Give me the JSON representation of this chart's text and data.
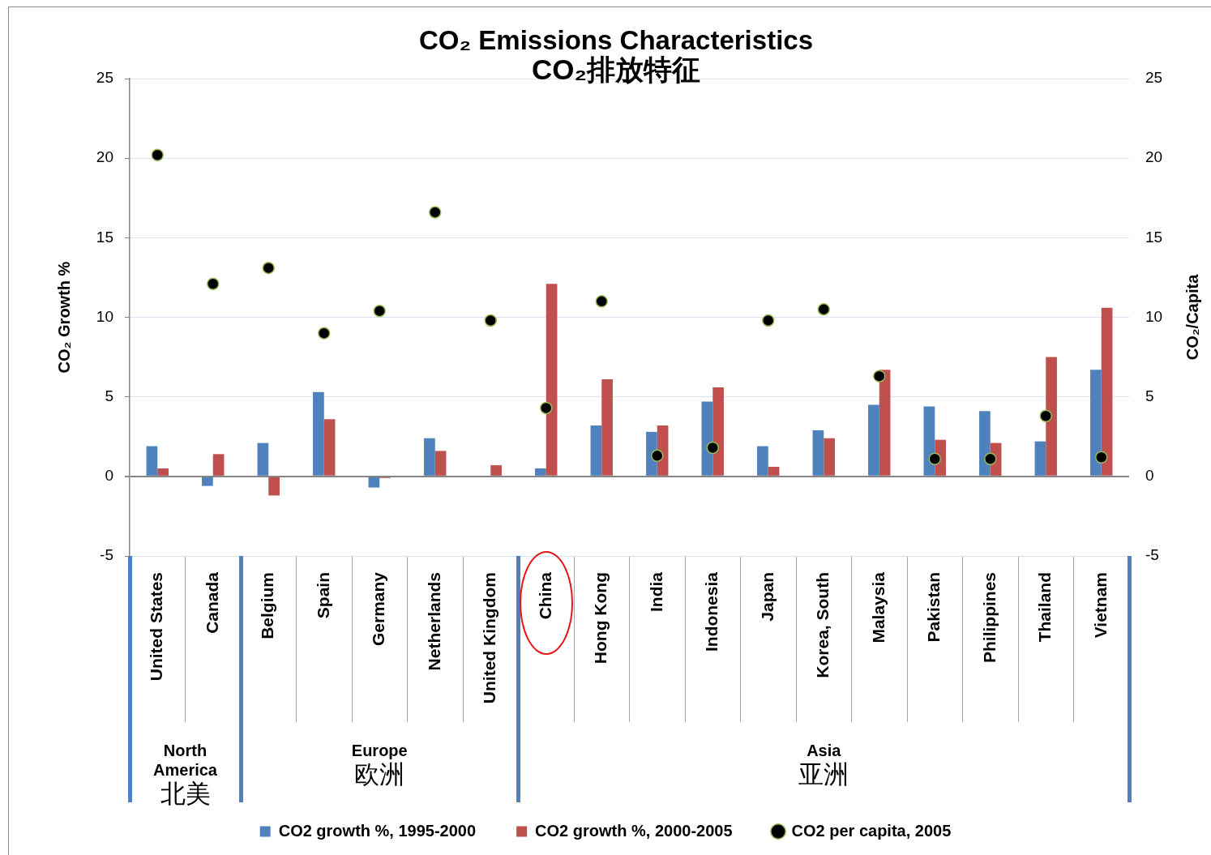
{
  "chart_data": {
    "type": "bar",
    "title": "CO₂ Emissions Characteristics",
    "subtitle": "CO₂排放特征",
    "ylabel": "CO₂ Growth %",
    "y2label": "CO₂/Capita",
    "categories": [
      "United States",
      "Canada",
      "Belgium",
      "Spain",
      "Germany",
      "Netherlands",
      "United Kingdom",
      "China",
      "Hong Kong",
      "India",
      "Indonesia",
      "Japan",
      "Korea, South",
      "Malaysia",
      "Pakistan",
      "Philippines",
      "Thailand",
      "Vietnam"
    ],
    "series": [
      {
        "name": "CO2 growth %, 1995-2000",
        "color": "#4f81bd",
        "values": [
          1.9,
          -0.6,
          2.1,
          5.3,
          -0.7,
          2.4,
          null,
          0.5,
          3.2,
          2.8,
          4.7,
          1.9,
          2.9,
          4.5,
          4.4,
          4.1,
          2.2,
          6.7
        ]
      },
      {
        "name": "CO2 growth %, 2000-2005",
        "color": "#c0504d",
        "values": [
          0.5,
          1.4,
          -1.2,
          3.6,
          -0.1,
          1.6,
          0.7,
          12.1,
          6.1,
          3.2,
          5.6,
          0.6,
          2.4,
          6.7,
          2.3,
          2.1,
          7.5,
          10.6
        ]
      },
      {
        "name": "CO2 per capita, 2005",
        "type": "scatter",
        "axis": "y2",
        "color": "#000000",
        "x": [
          "United States",
          "Canada",
          "Belgium",
          "Spain",
          "Germany",
          "Netherlands",
          "United Kingdom",
          "China",
          "Hong Kong",
          "India",
          "Indonesia",
          "Japan",
          "Korea, South",
          "Malaysia",
          "Pakistan",
          "Philippines",
          "Thailand",
          "Vietnam"
        ],
        "values": [
          20.2,
          12.1,
          13.1,
          9.0,
          10.4,
          16.6,
          9.8,
          4.3,
          11.0,
          1.3,
          1.8,
          9.8,
          10.5,
          6.3,
          1.1,
          1.1,
          3.8,
          1.2
        ]
      }
    ],
    "ylim": [
      -5,
      25
    ],
    "yticks": [
      -5,
      0,
      5,
      10,
      15,
      20,
      25
    ],
    "y2lim": [
      -5,
      25
    ],
    "y2ticks": [
      -5,
      0,
      5,
      10,
      15,
      20,
      25
    ],
    "grid": "y",
    "legend": "bottom",
    "marker": "circle",
    "annotations": [
      "North America\n北美",
      "Europe\n欧洲",
      "Asia\n亚洲"
    ]
  }
}
